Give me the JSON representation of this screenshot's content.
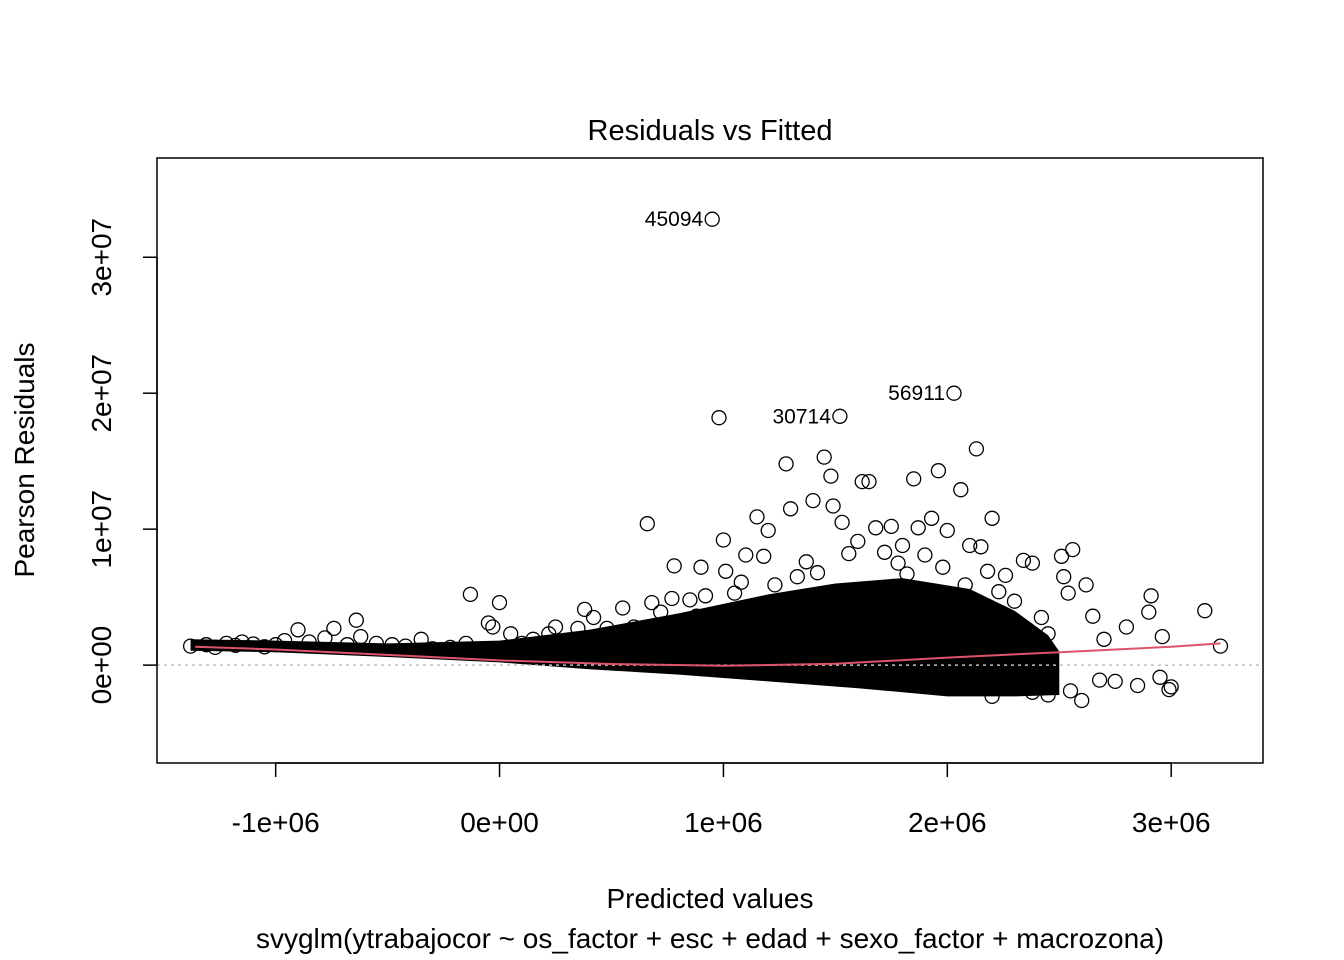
{
  "chart_data": {
    "type": "scatter",
    "title": "Residuals vs Fitted",
    "xlabel": "Predicted values",
    "subtitle": "svyglm(ytrabajocor ~ os_factor + esc + edad + sexo_factor + macrozona)",
    "ylabel": "Pearson Residuals",
    "xlim": [
      -1530000,
      3410000
    ],
    "ylim": [
      -7200000,
      37300000
    ],
    "x_ticks": [
      -1000000,
      0,
      1000000,
      2000000,
      3000000
    ],
    "x_tick_labels": [
      "-1e+06",
      "0e+00",
      "1e+06",
      "2e+06",
      "3e+06"
    ],
    "y_ticks": [
      0,
      10000000,
      20000000,
      30000000
    ],
    "y_tick_labels": [
      "0e+00",
      "1e+07",
      "2e+07",
      "3e+07"
    ],
    "grid": false,
    "reference_line": {
      "y": 0,
      "color": "#bebebe",
      "style": "dotted"
    },
    "point_color": "#000000",
    "smooth_color": "#DF536B",
    "labeled_points": [
      {
        "label": "45094",
        "x": 950000,
        "y": 32800000
      },
      {
        "label": "56911",
        "x": 2030000,
        "y": 20000000
      },
      {
        "label": "30714",
        "x": 1520000,
        "y": 18300000
      }
    ],
    "points": [
      [
        -1380000,
        1400000
      ],
      [
        -1310000,
        1500000
      ],
      [
        -1270000,
        1300000
      ],
      [
        -1220000,
        1600000
      ],
      [
        -1180000,
        1450000
      ],
      [
        -1150000,
        1700000
      ],
      [
        -1100000,
        1550000
      ],
      [
        -1050000,
        1350000
      ],
      [
        -1000000,
        1500000
      ],
      [
        -960000,
        1800000
      ],
      [
        -900000,
        2600000
      ],
      [
        -850000,
        1700000
      ],
      [
        -780000,
        2000000
      ],
      [
        -740000,
        2700000
      ],
      [
        -680000,
        1500000
      ],
      [
        -640000,
        3300000
      ],
      [
        -620000,
        2100000
      ],
      [
        -550000,
        1600000
      ],
      [
        -480000,
        1500000
      ],
      [
        -420000,
        1400000
      ],
      [
        -350000,
        1900000
      ],
      [
        -300000,
        1200000
      ],
      [
        -220000,
        1300000
      ],
      [
        -150000,
        1600000
      ],
      [
        -130000,
        5200000
      ],
      [
        -50000,
        3100000
      ],
      [
        -30000,
        2800000
      ],
      [
        0,
        4600000
      ],
      [
        50000,
        2300000
      ],
      [
        100000,
        1600000
      ],
      [
        150000,
        1900000
      ],
      [
        220000,
        2300000
      ],
      [
        250000,
        2800000
      ],
      [
        300000,
        1400000
      ],
      [
        350000,
        2700000
      ],
      [
        380000,
        4100000
      ],
      [
        420000,
        3500000
      ],
      [
        480000,
        2700000
      ],
      [
        550000,
        4200000
      ],
      [
        600000,
        2800000
      ],
      [
        660000,
        10400000
      ],
      [
        680000,
        4600000
      ],
      [
        720000,
        3900000
      ],
      [
        770000,
        4900000
      ],
      [
        780000,
        7300000
      ],
      [
        800000,
        2900000
      ],
      [
        850000,
        4800000
      ],
      [
        880000,
        3600000
      ],
      [
        900000,
        7200000
      ],
      [
        920000,
        5100000
      ],
      [
        950000,
        32800000
      ],
      [
        980000,
        18200000
      ],
      [
        1000000,
        9200000
      ],
      [
        1010000,
        6900000
      ],
      [
        1050000,
        5300000
      ],
      [
        1080000,
        6100000
      ],
      [
        1100000,
        8100000
      ],
      [
        1150000,
        10900000
      ],
      [
        1180000,
        8000000
      ],
      [
        1200000,
        9900000
      ],
      [
        1230000,
        5900000
      ],
      [
        1280000,
        14800000
      ],
      [
        1300000,
        11500000
      ],
      [
        1330000,
        6500000
      ],
      [
        1370000,
        7600000
      ],
      [
        1400000,
        12100000
      ],
      [
        1420000,
        6800000
      ],
      [
        1450000,
        15300000
      ],
      [
        1480000,
        13900000
      ],
      [
        1490000,
        11700000
      ],
      [
        1520000,
        18300000
      ],
      [
        1530000,
        10500000
      ],
      [
        1560000,
        8200000
      ],
      [
        1600000,
        9100000
      ],
      [
        1620000,
        13500000
      ],
      [
        1650000,
        13500000
      ],
      [
        1680000,
        10100000
      ],
      [
        1720000,
        8300000
      ],
      [
        1750000,
        10200000
      ],
      [
        1780000,
        7500000
      ],
      [
        1800000,
        8800000
      ],
      [
        1820000,
        6700000
      ],
      [
        1850000,
        13700000
      ],
      [
        1870000,
        10100000
      ],
      [
        1900000,
        8100000
      ],
      [
        1930000,
        10800000
      ],
      [
        1960000,
        14300000
      ],
      [
        1980000,
        7200000
      ],
      [
        2000000,
        9900000
      ],
      [
        2030000,
        20000000
      ],
      [
        2060000,
        12900000
      ],
      [
        2080000,
        5900000
      ],
      [
        2100000,
        8800000
      ],
      [
        2130000,
        15900000
      ],
      [
        2150000,
        8700000
      ],
      [
        2180000,
        6900000
      ],
      [
        2200000,
        10800000
      ],
      [
        2230000,
        5400000
      ],
      [
        2260000,
        6600000
      ],
      [
        2300000,
        4700000
      ],
      [
        2340000,
        7700000
      ],
      [
        2380000,
        7500000
      ],
      [
        2420000,
        3500000
      ],
      [
        2450000,
        2300000
      ],
      [
        2510000,
        8000000
      ],
      [
        2520000,
        6500000
      ],
      [
        2540000,
        5300000
      ],
      [
        2560000,
        8500000
      ],
      [
        2620000,
        5900000
      ],
      [
        2650000,
        3600000
      ],
      [
        2700000,
        1900000
      ],
      [
        2750000,
        -1200000
      ],
      [
        2800000,
        2800000
      ],
      [
        2850000,
        -1500000
      ],
      [
        2900000,
        3900000
      ],
      [
        2910000,
        5100000
      ],
      [
        2950000,
        -900000
      ],
      [
        2960000,
        2100000
      ],
      [
        2990000,
        -1800000
      ],
      [
        3000000,
        -1600000
      ],
      [
        3150000,
        4000000
      ],
      [
        3220000,
        1400000
      ],
      [
        2450000,
        -2200000
      ],
      [
        2380000,
        -2000000
      ],
      [
        2320000,
        -1700000
      ],
      [
        2250000,
        -1500000
      ],
      [
        2200000,
        -2300000
      ],
      [
        2600000,
        -2600000
      ],
      [
        2550000,
        -1900000
      ],
      [
        2680000,
        -1100000
      ]
    ],
    "cloud_upper_envelope": [
      [
        -1380000,
        1900000
      ],
      [
        -1000000,
        1800000
      ],
      [
        -500000,
        1600000
      ],
      [
        0,
        1800000
      ],
      [
        400000,
        2600000
      ],
      [
        800000,
        3800000
      ],
      [
        1200000,
        5200000
      ],
      [
        1500000,
        6000000
      ],
      [
        1800000,
        6400000
      ],
      [
        2100000,
        5600000
      ],
      [
        2300000,
        4000000
      ],
      [
        2450000,
        2200000
      ],
      [
        2500000,
        1000000
      ]
    ],
    "cloud_lower_envelope": [
      [
        2500000,
        -2200000
      ],
      [
        2300000,
        -2300000
      ],
      [
        2000000,
        -2300000
      ],
      [
        1600000,
        -1700000
      ],
      [
        1200000,
        -1200000
      ],
      [
        800000,
        -700000
      ],
      [
        400000,
        -300000
      ],
      [
        0,
        200000
      ],
      [
        -500000,
        600000
      ],
      [
        -1000000,
        950000
      ],
      [
        -1380000,
        1050000
      ]
    ],
    "smooth_line": [
      [
        -1360000,
        1350000
      ],
      [
        -1000000,
        1150000
      ],
      [
        -500000,
        750000
      ],
      [
        0,
        350000
      ],
      [
        500000,
        80000
      ],
      [
        1000000,
        -50000
      ],
      [
        1500000,
        100000
      ],
      [
        2000000,
        550000
      ],
      [
        2500000,
        950000
      ],
      [
        3000000,
        1350000
      ],
      [
        3220000,
        1600000
      ]
    ]
  }
}
